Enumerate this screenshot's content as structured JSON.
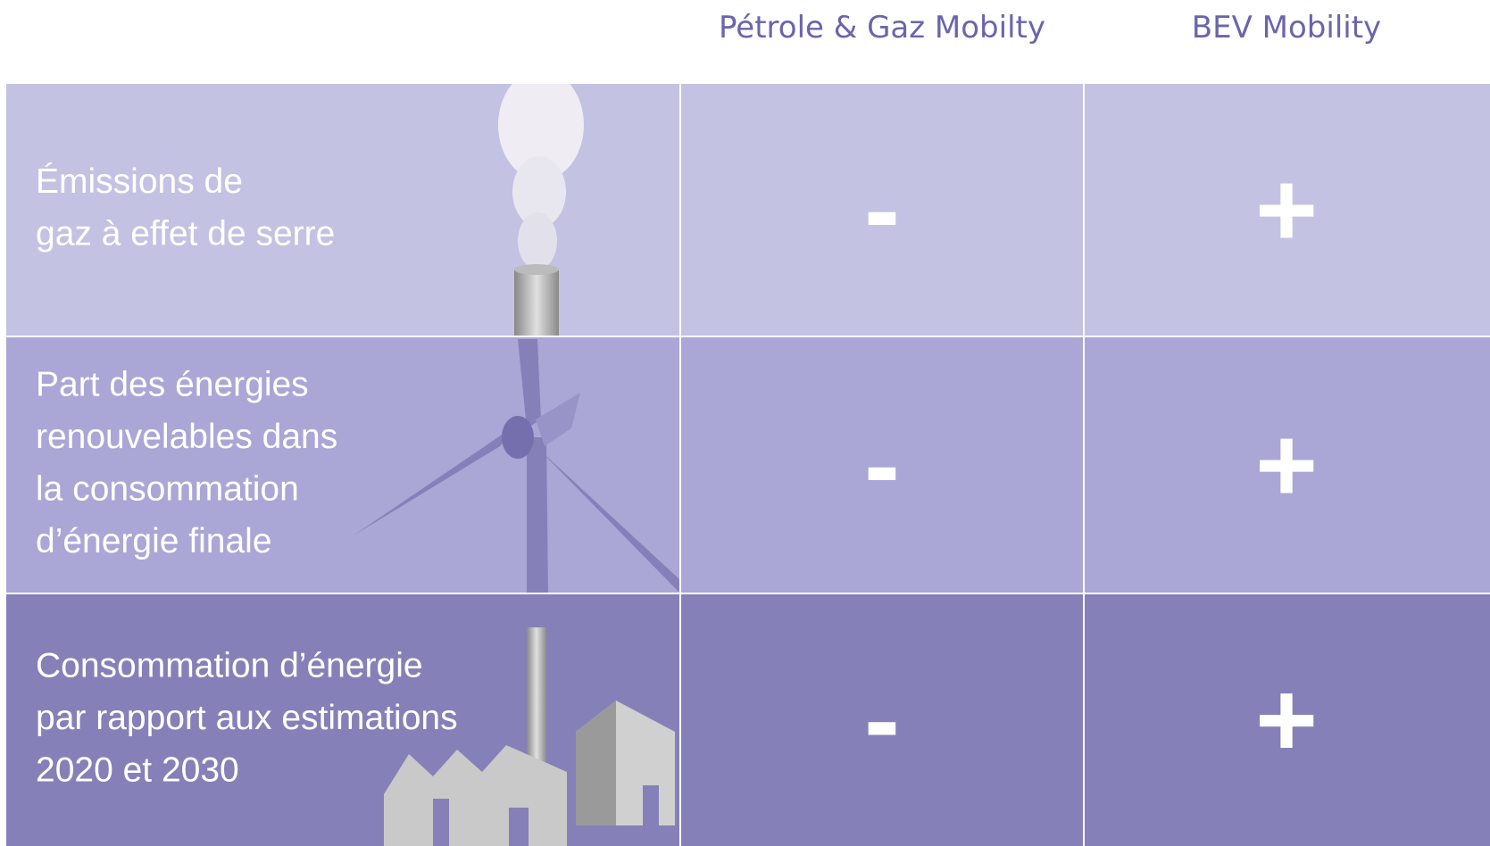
{
  "header": {
    "columns": [
      "Pétrole & Gaz Mobilty",
      "BEV Mobility"
    ]
  },
  "rows": [
    {
      "label": [
        "Émissions de",
        "gaz à effet de serre"
      ],
      "cells": [
        "-",
        "+"
      ]
    },
    {
      "label": [
        "Part des énergies",
        "renouvelables dans",
        "la consommation",
        "d’énergie finale"
      ],
      "cells": [
        "-",
        "+"
      ]
    },
    {
      "label": [
        "Consommation d’énergie",
        "par rapport aux estimations",
        "2020 et 2030"
      ],
      "cells": [
        "-",
        "+"
      ]
    }
  ]
}
